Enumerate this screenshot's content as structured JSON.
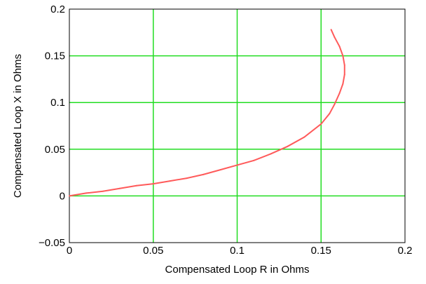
{
  "chart_data": {
    "type": "line",
    "title": "",
    "xlabel": "Compensated Loop R in Ohms",
    "ylabel": "Compensated Loop X in Ohms",
    "xlim": [
      0,
      0.2
    ],
    "ylim": [
      -0.05,
      0.2
    ],
    "x_ticks": [
      0,
      0.05,
      0.1,
      0.15,
      0.2
    ],
    "x_tick_labels": [
      "0",
      "0.05",
      "0.1",
      "0.15",
      "0.2"
    ],
    "y_ticks": [
      -0.05,
      0,
      0.05,
      0.1,
      0.15,
      0.2
    ],
    "y_tick_labels": [
      "−0.05",
      "0",
      "0.05",
      "0.1",
      "0.15",
      "0.2"
    ],
    "grid": true,
    "grid_color": "#22dd22",
    "line_color": "#ff5a5a",
    "series": [
      {
        "x": [
          0.0,
          0.01,
          0.02,
          0.03,
          0.04,
          0.05,
          0.06,
          0.07,
          0.08,
          0.09,
          0.1,
          0.11,
          0.12,
          0.13,
          0.14,
          0.15,
          0.155,
          0.158,
          0.161,
          0.163,
          0.164,
          0.164,
          0.163,
          0.161,
          0.158,
          0.156
        ],
        "y": [
          0.0,
          0.003,
          0.005,
          0.008,
          0.011,
          0.013,
          0.016,
          0.019,
          0.023,
          0.028,
          0.033,
          0.038,
          0.045,
          0.053,
          0.063,
          0.077,
          0.088,
          0.098,
          0.11,
          0.12,
          0.13,
          0.14,
          0.15,
          0.16,
          0.17,
          0.178
        ]
      }
    ]
  }
}
